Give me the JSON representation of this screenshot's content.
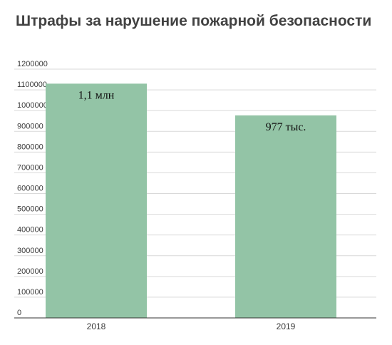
{
  "chart_data": {
    "type": "bar",
    "title": "Штрафы за нарушение пожарной безопасности",
    "categories": [
      "2018",
      "2019"
    ],
    "values": [
      1130000,
      977000
    ],
    "data_labels": [
      "1,1 млн",
      "977 тыс."
    ],
    "ylim": [
      0,
      1200000
    ],
    "yticks": [
      "0",
      "100000",
      "200000",
      "300000",
      "400000",
      "500000",
      "600000",
      "700000",
      "800000",
      "900000",
      "1000000",
      "1100000",
      "1200000"
    ],
    "xlabel": "",
    "ylabel": "",
    "grid": true,
    "bar_color": "#93c4a6",
    "grid_color": "#d9d9d9",
    "axis_color": "#333333"
  }
}
